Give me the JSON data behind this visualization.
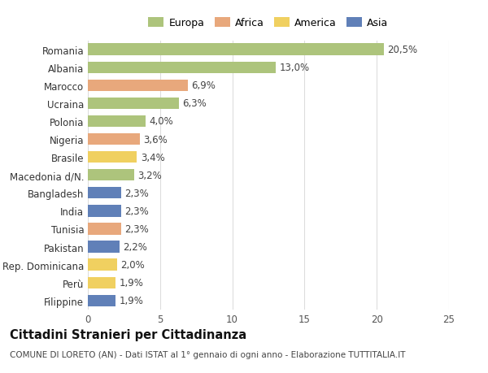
{
  "categories": [
    "Romania",
    "Albania",
    "Marocco",
    "Ucraina",
    "Polonia",
    "Nigeria",
    "Brasile",
    "Macedonia d/N.",
    "Bangladesh",
    "India",
    "Tunisia",
    "Pakistan",
    "Rep. Dominicana",
    "Perù",
    "Filippine"
  ],
  "values": [
    20.5,
    13.0,
    6.9,
    6.3,
    4.0,
    3.6,
    3.4,
    3.2,
    2.3,
    2.3,
    2.3,
    2.2,
    2.0,
    1.9,
    1.9
  ],
  "labels": [
    "20,5%",
    "13,0%",
    "6,9%",
    "6,3%",
    "4,0%",
    "3,6%",
    "3,4%",
    "3,2%",
    "2,3%",
    "2,3%",
    "2,3%",
    "2,2%",
    "2,0%",
    "1,9%",
    "1,9%"
  ],
  "continents": [
    "Europa",
    "Europa",
    "Africa",
    "Europa",
    "Europa",
    "Africa",
    "America",
    "Europa",
    "Asia",
    "Asia",
    "Africa",
    "Asia",
    "America",
    "America",
    "Asia"
  ],
  "continent_colors": {
    "Europa": "#adc47c",
    "Africa": "#e8a87c",
    "America": "#f0d060",
    "Asia": "#6080b8"
  },
  "legend_order": [
    "Europa",
    "Africa",
    "America",
    "Asia"
  ],
  "xlim": [
    0,
    25
  ],
  "xticks": [
    0,
    5,
    10,
    15,
    20,
    25
  ],
  "title": "Cittadini Stranieri per Cittadinanza",
  "subtitle": "COMUNE DI LORETO (AN) - Dati ISTAT al 1° gennaio di ogni anno - Elaborazione TUTTITALIA.IT",
  "background_color": "#ffffff",
  "bar_height": 0.65,
  "grid_color": "#dddddd",
  "label_fontsize": 8.5,
  "title_fontsize": 10.5,
  "subtitle_fontsize": 7.5,
  "ytick_fontsize": 8.5,
  "xtick_fontsize": 8.5
}
